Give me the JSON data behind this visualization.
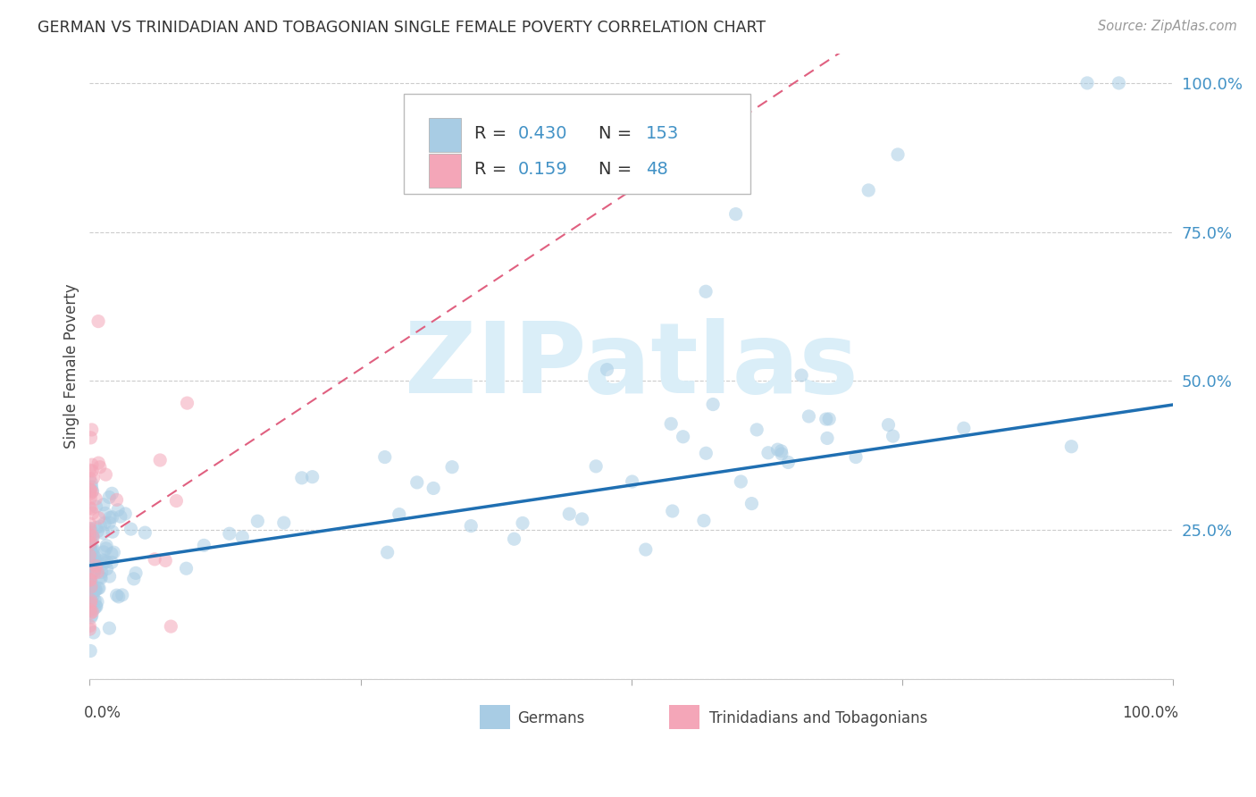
{
  "title": "GERMAN VS TRINIDADIAN AND TOBAGONIAN SINGLE FEMALE POVERTY CORRELATION CHART",
  "source": "Source: ZipAtlas.com",
  "ylabel": "Single Female Poverty",
  "legend_label_1": "Germans",
  "legend_label_2": "Trinidadians and Tobagonians",
  "R1": 0.43,
  "N1": 153,
  "R2": 0.159,
  "N2": 48,
  "color_blue": "#a8cce4",
  "color_pink": "#f4a6b8",
  "color_blue_text": "#4292c6",
  "color_line_blue": "#1f6fb2",
  "color_line_pink": "#e06080",
  "background_color": "#ffffff",
  "watermark_color": "#daeef8",
  "xlim": [
    0.0,
    1.0
  ],
  "ylim": [
    0.0,
    1.05
  ]
}
